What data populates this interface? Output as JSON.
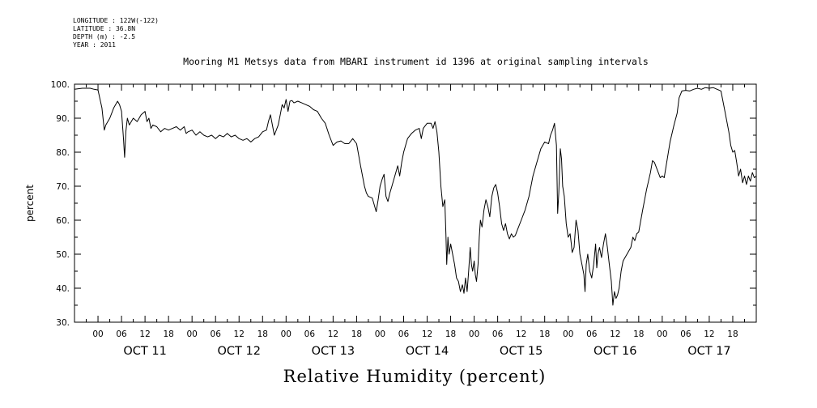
{
  "meta": {
    "longitude": "LONGITUDE : 122W(-122)",
    "latitude": "LATITUDE : 36.8N",
    "depth": "DEPTH (m) : -2.5",
    "year": "YEAR : 2011"
  },
  "chart_data": {
    "type": "line",
    "title": "Mooring M1 Metsys data from MBARI instrument id 1396 at original sampling intervals",
    "bottom_title": "Relative Humidity (percent)",
    "ylabel": "percent",
    "xlabel": "",
    "ylim": [
      30,
      100
    ],
    "yticks": [
      30,
      40,
      50,
      60,
      70,
      80,
      90,
      100
    ],
    "ytick_labels": [
      "30.",
      "40.",
      "50.",
      "60.",
      "70.",
      "80.",
      "90.",
      "100."
    ],
    "x_unit": "hours since OCT 10 18:00",
    "xlim": [
      0,
      174
    ],
    "hour_tick_labels": [
      "00",
      "06",
      "12",
      "18",
      "00",
      "06",
      "12",
      "18",
      "00",
      "06",
      "12",
      "18",
      "00",
      "06",
      "12",
      "18",
      "00",
      "06",
      "12",
      "18",
      "00",
      "06",
      "12",
      "18",
      "00",
      "06",
      "12",
      "18"
    ],
    "day_labels": [
      "OCT 11",
      "OCT 12",
      "OCT 13",
      "OCT 14",
      "OCT 15",
      "OCT 16",
      "OCT 17"
    ],
    "grid": false,
    "series": [
      {
        "color": "#000000",
        "points": [
          [
            0,
            98.5
          ],
          [
            2,
            98.8
          ],
          [
            4,
            98.8
          ],
          [
            5,
            98.5
          ],
          [
            6,
            98.3
          ],
          [
            7,
            93
          ],
          [
            7.6,
            86.5
          ],
          [
            8,
            88
          ],
          [
            9,
            90
          ],
          [
            10,
            93
          ],
          [
            11,
            95
          ],
          [
            11.5,
            94
          ],
          [
            12,
            92
          ],
          [
            12.5,
            84
          ],
          [
            12.8,
            78.5
          ],
          [
            13.1,
            86
          ],
          [
            13.5,
            90
          ],
          [
            14,
            88
          ],
          [
            15,
            90
          ],
          [
            16,
            89
          ],
          [
            17,
            91
          ],
          [
            18,
            92
          ],
          [
            18.5,
            89
          ],
          [
            19,
            90
          ],
          [
            19.5,
            87
          ],
          [
            20,
            88
          ],
          [
            21,
            87.5
          ],
          [
            22,
            86
          ],
          [
            23,
            87
          ],
          [
            24,
            86.5
          ],
          [
            25,
            87
          ],
          [
            26,
            87.5
          ],
          [
            27,
            86.5
          ],
          [
            28,
            87.5
          ],
          [
            28.5,
            85.5
          ],
          [
            29,
            86
          ],
          [
            30,
            86.5
          ],
          [
            31,
            85
          ],
          [
            32,
            86
          ],
          [
            33,
            85
          ],
          [
            34,
            84.5
          ],
          [
            35,
            85
          ],
          [
            36,
            84
          ],
          [
            37,
            85
          ],
          [
            38,
            84.5
          ],
          [
            39,
            85.5
          ],
          [
            40,
            84.5
          ],
          [
            41,
            85
          ],
          [
            42,
            84
          ],
          [
            43,
            83.5
          ],
          [
            44,
            84
          ],
          [
            45,
            83
          ],
          [
            46,
            84
          ],
          [
            47,
            84.5
          ],
          [
            48,
            86
          ],
          [
            49,
            86.5
          ],
          [
            49.5,
            89
          ],
          [
            50,
            91
          ],
          [
            50.5,
            88
          ],
          [
            51,
            85
          ],
          [
            52,
            88
          ],
          [
            52.5,
            91
          ],
          [
            53,
            94
          ],
          [
            53.5,
            93
          ],
          [
            54,
            95.5
          ],
          [
            54.5,
            92
          ],
          [
            55,
            95
          ],
          [
            55.5,
            95.2
          ],
          [
            56,
            94.5
          ],
          [
            57,
            95
          ],
          [
            58,
            94.5
          ],
          [
            59,
            94
          ],
          [
            60,
            93.5
          ],
          [
            61,
            92.5
          ],
          [
            62,
            92
          ],
          [
            63,
            90
          ],
          [
            64,
            88.5
          ],
          [
            65,
            85
          ],
          [
            66,
            82
          ],
          [
            66.5,
            82.5
          ],
          [
            67,
            83
          ],
          [
            68,
            83.3
          ],
          [
            69,
            82.5
          ],
          [
            70,
            82.5
          ],
          [
            71,
            84
          ],
          [
            72,
            82.5
          ],
          [
            73,
            76
          ],
          [
            74,
            70
          ],
          [
            74.5,
            68
          ],
          [
            75,
            67
          ],
          [
            76,
            66.5
          ],
          [
            76.5,
            64.5
          ],
          [
            77,
            62.5
          ],
          [
            77.5,
            66
          ],
          [
            78,
            70
          ],
          [
            78.5,
            72
          ],
          [
            79,
            73.5
          ],
          [
            79.5,
            67
          ],
          [
            80,
            65.5
          ],
          [
            80.5,
            68
          ],
          [
            81,
            70
          ],
          [
            81.5,
            72
          ],
          [
            82,
            74
          ],
          [
            82.5,
            76
          ],
          [
            83,
            73
          ],
          [
            83.5,
            77
          ],
          [
            84,
            80
          ],
          [
            85,
            84
          ],
          [
            86,
            85.5
          ],
          [
            87,
            86.5
          ],
          [
            88,
            87
          ],
          [
            88.5,
            84
          ],
          [
            89,
            87
          ],
          [
            90,
            88.5
          ],
          [
            91,
            88.5
          ],
          [
            91.5,
            87
          ],
          [
            92,
            89
          ],
          [
            92.5,
            86
          ],
          [
            93,
            80
          ],
          [
            93.5,
            70
          ],
          [
            94,
            64
          ],
          [
            94.5,
            66
          ],
          [
            94.8,
            56
          ],
          [
            95,
            47
          ],
          [
            95.3,
            55
          ],
          [
            95.6,
            50
          ],
          [
            96,
            53
          ],
          [
            96.5,
            50
          ],
          [
            97,
            47
          ],
          [
            97.5,
            43
          ],
          [
            98,
            42
          ],
          [
            98.5,
            39
          ],
          [
            99,
            41
          ],
          [
            99.4,
            38.5
          ],
          [
            99.8,
            43
          ],
          [
            100.2,
            39
          ],
          [
            100.6,
            45
          ],
          [
            101,
            52
          ],
          [
            101.3,
            47
          ],
          [
            101.6,
            45
          ],
          [
            102,
            48
          ],
          [
            102.3,
            44
          ],
          [
            102.6,
            42
          ],
          [
            103,
            47
          ],
          [
            103.3,
            55
          ],
          [
            103.6,
            60
          ],
          [
            104,
            58
          ],
          [
            104.5,
            63
          ],
          [
            105,
            66
          ],
          [
            105.5,
            64
          ],
          [
            106,
            61
          ],
          [
            106.5,
            67
          ],
          [
            107,
            69.5
          ],
          [
            107.5,
            70.5
          ],
          [
            108,
            68
          ],
          [
            108.5,
            64
          ],
          [
            109,
            59
          ],
          [
            109.5,
            57
          ],
          [
            110,
            59
          ],
          [
            110.5,
            56
          ],
          [
            111,
            54.5
          ],
          [
            111.5,
            56
          ],
          [
            112,
            55
          ],
          [
            112.5,
            55.5
          ],
          [
            113,
            57
          ],
          [
            114,
            60
          ],
          [
            115,
            63
          ],
          [
            116,
            67
          ],
          [
            117,
            73
          ],
          [
            118,
            77
          ],
          [
            119,
            81
          ],
          [
            120,
            83
          ],
          [
            121,
            82.5
          ],
          [
            121.5,
            85
          ],
          [
            122,
            86.5
          ],
          [
            122.5,
            88.5
          ],
          [
            123,
            82
          ],
          [
            123.3,
            62
          ],
          [
            123.6,
            68
          ],
          [
            124,
            81
          ],
          [
            124.3,
            78
          ],
          [
            124.6,
            70
          ],
          [
            125,
            67
          ],
          [
            125.5,
            59
          ],
          [
            126,
            55
          ],
          [
            126.5,
            56
          ],
          [
            126.8,
            53
          ],
          [
            127,
            50.5
          ],
          [
            127.5,
            52
          ],
          [
            128,
            60
          ],
          [
            128.5,
            57
          ],
          [
            129,
            50
          ],
          [
            129.5,
            47
          ],
          [
            130,
            44
          ],
          [
            130.3,
            39
          ],
          [
            130.6,
            47
          ],
          [
            131,
            50
          ],
          [
            131.5,
            45
          ],
          [
            132,
            43
          ],
          [
            132.5,
            47
          ],
          [
            133,
            53
          ],
          [
            133.3,
            46
          ],
          [
            133.6,
            50
          ],
          [
            134,
            52
          ],
          [
            134.5,
            49
          ],
          [
            135,
            53
          ],
          [
            135.5,
            56
          ],
          [
            136,
            52
          ],
          [
            136.5,
            47
          ],
          [
            137,
            42
          ],
          [
            137.4,
            35
          ],
          [
            137.8,
            39
          ],
          [
            138.2,
            37
          ],
          [
            138.6,
            38
          ],
          [
            139,
            40
          ],
          [
            139.5,
            45
          ],
          [
            140,
            48
          ],
          [
            141,
            50
          ],
          [
            142,
            52
          ],
          [
            142.5,
            55
          ],
          [
            143,
            54
          ],
          [
            143.5,
            56
          ],
          [
            144,
            56.5
          ],
          [
            145,
            63
          ],
          [
            146,
            69
          ],
          [
            147,
            74
          ],
          [
            147.5,
            77.5
          ],
          [
            148,
            77
          ],
          [
            149,
            74
          ],
          [
            149.5,
            72.5
          ],
          [
            150,
            73
          ],
          [
            150.5,
            72.5
          ],
          [
            151,
            76
          ],
          [
            152,
            83
          ],
          [
            153,
            88
          ],
          [
            153.8,
            91.5
          ],
          [
            154.3,
            96
          ],
          [
            155,
            98
          ],
          [
            156,
            98.2
          ],
          [
            157,
            98
          ],
          [
            158,
            98.5
          ],
          [
            159,
            98.8
          ],
          [
            160,
            98.5
          ],
          [
            161,
            99
          ],
          [
            162,
            98.8
          ],
          [
            163,
            99
          ],
          [
            164,
            98.5
          ],
          [
            165,
            98
          ],
          [
            166,
            92
          ],
          [
            166.5,
            89
          ],
          [
            167,
            86
          ],
          [
            167.5,
            82
          ],
          [
            168,
            80
          ],
          [
            168.5,
            80.5
          ],
          [
            169,
            77
          ],
          [
            169.5,
            73
          ],
          [
            170,
            75
          ],
          [
            170.5,
            71
          ],
          [
            171,
            73
          ],
          [
            171.5,
            70.5
          ],
          [
            172,
            73
          ],
          [
            172.5,
            71.5
          ],
          [
            173,
            74
          ],
          [
            173.5,
            72.5
          ],
          [
            174,
            73
          ]
        ]
      }
    ]
  }
}
